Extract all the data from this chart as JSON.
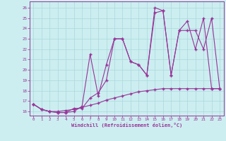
{
  "xlabel": "Windchill (Refroidissement éolien,°C)",
  "bg_color": "#cceef0",
  "line_color": "#993399",
  "grid_color": "#aad8dc",
  "xlim": [
    -0.5,
    23.5
  ],
  "ylim": [
    15.6,
    26.6
  ],
  "xticks": [
    0,
    1,
    2,
    3,
    4,
    5,
    6,
    7,
    8,
    9,
    10,
    11,
    12,
    13,
    14,
    15,
    16,
    17,
    18,
    19,
    20,
    21,
    22,
    23
  ],
  "yticks": [
    16,
    17,
    18,
    19,
    20,
    21,
    22,
    23,
    24,
    25,
    26
  ],
  "line1_x": [
    0,
    1,
    2,
    3,
    4,
    5,
    6,
    7,
    8,
    9,
    10,
    11,
    12,
    13,
    14,
    15,
    16,
    17,
    18,
    19,
    20,
    21,
    22,
    23
  ],
  "line1_y": [
    16.7,
    16.2,
    16.0,
    16.0,
    16.1,
    16.2,
    16.4,
    16.6,
    16.8,
    17.1,
    17.3,
    17.5,
    17.7,
    17.9,
    18.0,
    18.1,
    18.2,
    18.2,
    18.2,
    18.2,
    18.2,
    18.2,
    18.2,
    18.2
  ],
  "line2_x": [
    0,
    1,
    2,
    3,
    4,
    5,
    6,
    7,
    8,
    9,
    10,
    11,
    12,
    13,
    14,
    15,
    16,
    17,
    18,
    19,
    20,
    21,
    22,
    23
  ],
  "line2_y": [
    16.7,
    16.2,
    16.0,
    15.9,
    15.9,
    16.3,
    16.3,
    17.3,
    17.8,
    19.0,
    23.0,
    23.0,
    20.8,
    20.5,
    19.5,
    26.0,
    25.7,
    19.5,
    23.8,
    23.8,
    23.8,
    22.0,
    25.0,
    18.2
  ],
  "line3_x": [
    0,
    1,
    2,
    3,
    4,
    5,
    6,
    7,
    8,
    9,
    10,
    11,
    12,
    13,
    14,
    15,
    16,
    17,
    18,
    19,
    20,
    21,
    22,
    23
  ],
  "line3_y": [
    16.7,
    16.2,
    16.0,
    15.9,
    15.9,
    16.0,
    16.5,
    21.5,
    17.5,
    20.5,
    23.0,
    23.0,
    20.8,
    20.5,
    19.5,
    25.5,
    25.7,
    19.5,
    23.8,
    24.7,
    22.0,
    25.0,
    18.2,
    18.2
  ]
}
